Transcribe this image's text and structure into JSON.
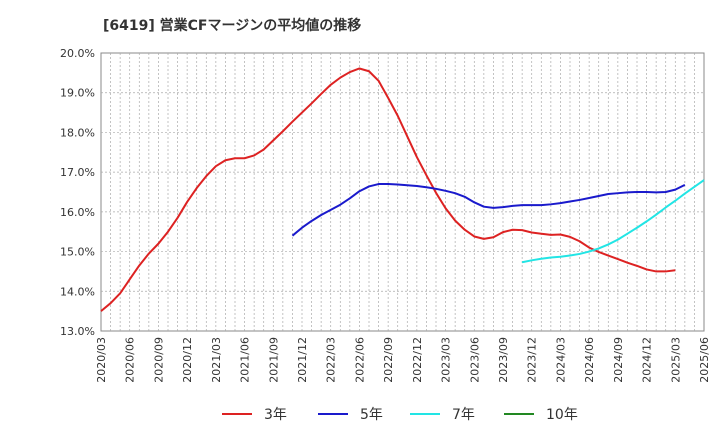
{
  "chart_data": {
    "type": "line",
    "title": "[6419]  営業CFマージンの平均値の推移",
    "xlabel": "",
    "ylabel": "",
    "ylim": [
      13.0,
      20.0
    ],
    "y_ticks": [
      "13.0%",
      "14.0%",
      "15.0%",
      "16.0%",
      "17.0%",
      "18.0%",
      "19.0%",
      "20.0%"
    ],
    "x_ticks": [
      "2020/03",
      "2020/06",
      "2020/09",
      "2020/12",
      "2021/03",
      "2021/06",
      "2021/09",
      "2021/12",
      "2022/03",
      "2022/06",
      "2022/09",
      "2022/12",
      "2023/03",
      "2023/06",
      "2023/09",
      "2023/12",
      "2024/03",
      "2024/06",
      "2024/09",
      "2024/12",
      "2025/03",
      "2025/06"
    ],
    "grid": true,
    "legend_position": "bottom",
    "series": [
      {
        "name": "3年",
        "color": "#dd2222",
        "x_start": "2020/03",
        "values": [
          13.5,
          13.7,
          13.95,
          14.3,
          14.65,
          14.95,
          15.2,
          15.5,
          15.85,
          16.25,
          16.6,
          16.9,
          17.15,
          17.3,
          17.35,
          17.35,
          17.42,
          17.57,
          17.8,
          18.03,
          18.27,
          18.5,
          18.73,
          18.97,
          19.2,
          19.38,
          19.52,
          19.61,
          19.54,
          19.3,
          18.87,
          18.42,
          17.9,
          17.38,
          16.92,
          16.48,
          16.09,
          15.78,
          15.55,
          15.38,
          15.32,
          15.36,
          15.49,
          15.55,
          15.54,
          15.48,
          15.45,
          15.42,
          15.43,
          15.37,
          15.26,
          15.1,
          14.99,
          14.9,
          14.81,
          14.72,
          14.64,
          14.55,
          14.5,
          14.5,
          14.53
        ]
      },
      {
        "name": "5年",
        "color": "#1a1acc",
        "x_start": "2021/11",
        "values": [
          15.4,
          15.6,
          15.77,
          15.92,
          16.05,
          16.18,
          16.34,
          16.52,
          16.64,
          16.7,
          16.7,
          16.69,
          16.67,
          16.65,
          16.62,
          16.58,
          16.53,
          16.47,
          16.38,
          16.24,
          16.13,
          16.1,
          16.12,
          16.15,
          16.17,
          16.17,
          16.17,
          16.19,
          16.22,
          16.26,
          16.3,
          16.35,
          16.4,
          16.45,
          16.47,
          16.49,
          16.5,
          16.5,
          16.49,
          16.5,
          16.56,
          16.68
        ]
      },
      {
        "name": "7年",
        "color": "#22e5e5",
        "x_start": "2023/11",
        "values": [
          14.73,
          14.78,
          14.82,
          14.85,
          14.87,
          14.9,
          14.94,
          15.0,
          15.08,
          15.18,
          15.3,
          15.45,
          15.6,
          15.76,
          15.93,
          16.11,
          16.28,
          16.46,
          16.63,
          16.8
        ]
      },
      {
        "name": "10年",
        "color": "#228822",
        "x_start": "",
        "values": []
      }
    ]
  }
}
